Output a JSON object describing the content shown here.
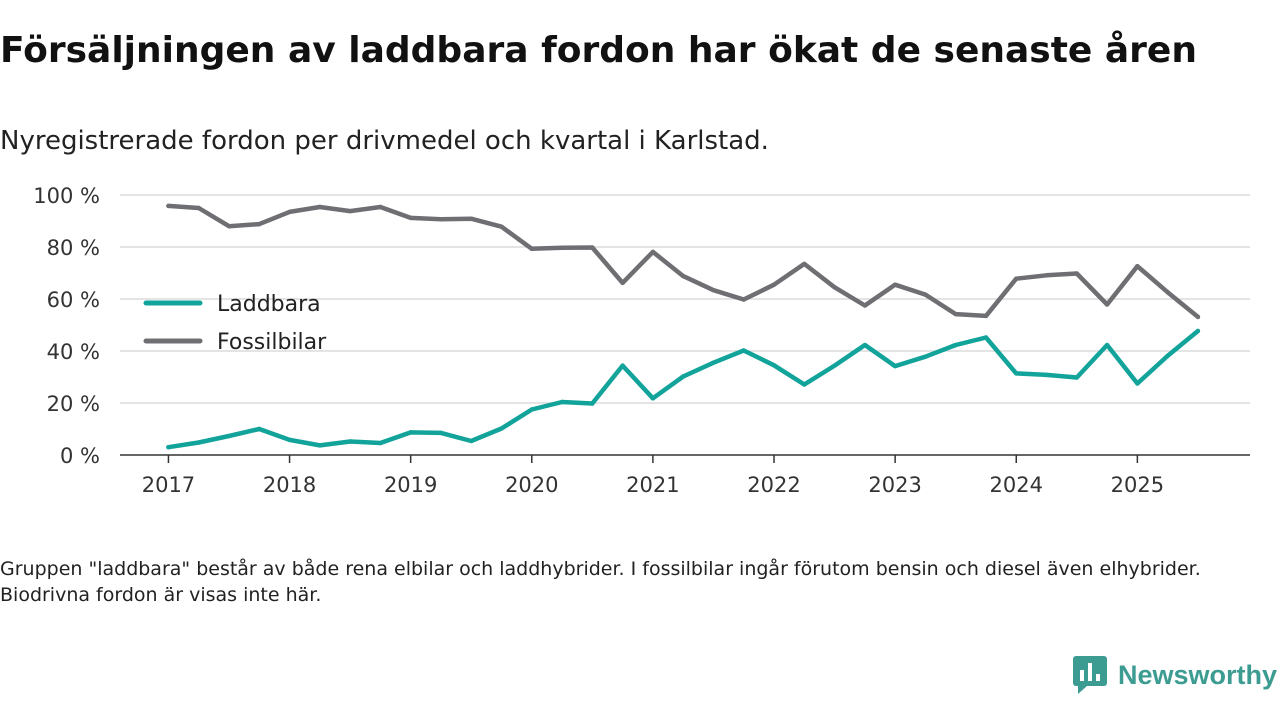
{
  "title": "Försäljningen av laddbara fordon har ökat de senaste åren",
  "subtitle": "Nyregistrerade fordon per drivmedel och kvartal i Karlstad.",
  "note": "Gruppen \"laddbara\" består av både rena elbilar och laddhybrider. I fossilbilar ingår förutom bensin och diesel även elhybrider. Biodrivna fordon är visas inte här.",
  "brand": "Newsworthy",
  "colors": {
    "laddbara": "#12a39a",
    "fossil": "#6f6e73",
    "grid": "#dcdcdc",
    "axis": "#333333",
    "brand": "#3d9c92"
  },
  "chart_data": {
    "type": "line",
    "title": "Försäljningen av laddbara fordon har ökat de senaste åren",
    "xlabel": "",
    "ylabel": "",
    "x_start": 2017.0,
    "x_step": 0.25,
    "xlim": [
      2016.6,
      2025.93
    ],
    "ylim": [
      0,
      100
    ],
    "x_ticks": [
      2017,
      2018,
      2019,
      2020,
      2021,
      2022,
      2023,
      2024,
      2025
    ],
    "x_tick_labels": [
      "2017",
      "2018",
      "2019",
      "2020",
      "2021",
      "2022",
      "2023",
      "2024",
      "2025"
    ],
    "y_ticks": [
      0,
      20,
      40,
      60,
      80,
      100
    ],
    "y_tick_labels": [
      "0 %",
      "20 %",
      "40 %",
      "60 %",
      "80 %",
      "100 %"
    ],
    "grid": true,
    "legend_position": "left",
    "series": [
      {
        "name": "Laddbara",
        "color": "#12a39a",
        "values": [
          3,
          4.8,
          7.3,
          10,
          5.8,
          3.7,
          5.2,
          4.6,
          8.7,
          8.5,
          5.4,
          10.2,
          17.5,
          20.4,
          19.8,
          34.4,
          21.8,
          30.2,
          35.5,
          40.2,
          34.5,
          27.1,
          34.4,
          42.3,
          34.2,
          37.8,
          42.3,
          45.2,
          31.4,
          30.8,
          29.8,
          42.3,
          27.5,
          38.1,
          47.7
        ]
      },
      {
        "name": "Fossilbilar",
        "color": "#6f6e73",
        "values": [
          95.8,
          95,
          88,
          88.8,
          93.5,
          95.4,
          93.8,
          95.4,
          91.2,
          90.7,
          90.9,
          87.8,
          79.3,
          79.7,
          79.8,
          66.2,
          78.1,
          68.8,
          63.4,
          59.8,
          65.5,
          73.5,
          64.5,
          57.5,
          65.5,
          61.7,
          54.2,
          53.5,
          67.8,
          69.1,
          69.8,
          57.9,
          72.6,
          62.6,
          53.1
        ]
      }
    ]
  }
}
